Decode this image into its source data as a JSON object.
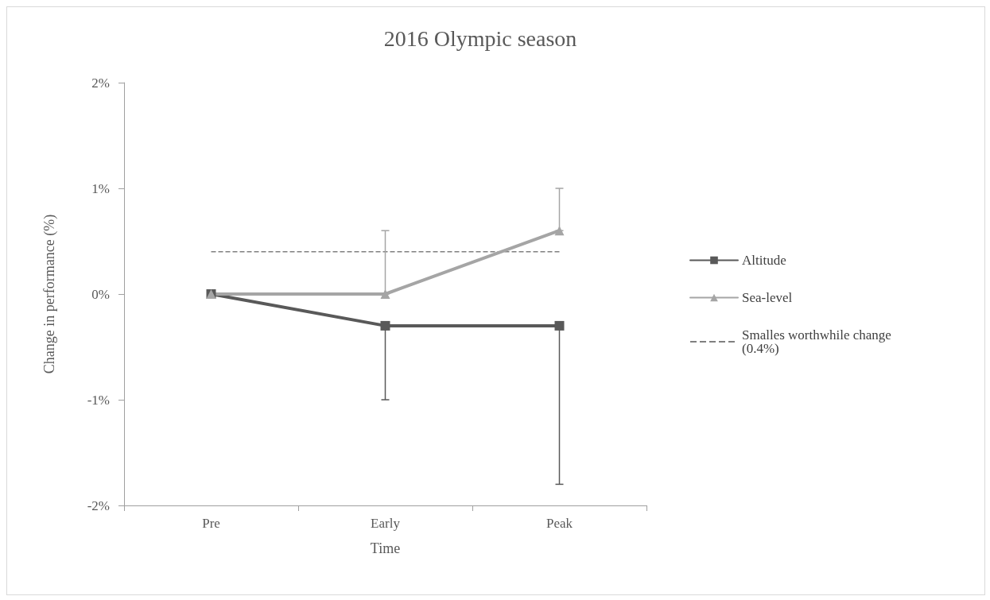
{
  "chart_data": {
    "type": "line",
    "title": "2016 Olympic season",
    "xlabel": "Time",
    "ylabel": "Change in performance (%)",
    "categories": [
      "Pre",
      "Early",
      "Peak"
    ],
    "series": [
      {
        "name": "Altitude",
        "color": "#595959",
        "marker": "square",
        "values": [
          0,
          -0.3,
          -0.3
        ],
        "errors": [
          null,
          [
            -1.0,
            -0.3
          ],
          [
            -1.8,
            -0.3
          ]
        ]
      },
      {
        "name": "Sea-level",
        "color": "#a5a5a5",
        "marker": "triangle",
        "values": [
          0,
          0,
          0.6
        ],
        "errors": [
          null,
          [
            0,
            0.6
          ],
          [
            0.6,
            1.0
          ]
        ]
      }
    ],
    "ref_lines": [
      {
        "axis": "y",
        "value": 0.4,
        "label": "Smalles worthwhile change (0.4%)",
        "color": "#808080",
        "line_style": "dashed"
      }
    ],
    "ylim": [
      -2,
      2
    ],
    "yticks": [
      {
        "value": -2,
        "label": "-2%"
      },
      {
        "value": -1,
        "label": "-1%"
      },
      {
        "value": 0,
        "label": "0%"
      },
      {
        "value": 1,
        "label": "1%"
      },
      {
        "value": 2,
        "label": "2%"
      }
    ],
    "grid": false,
    "legend": "right"
  }
}
